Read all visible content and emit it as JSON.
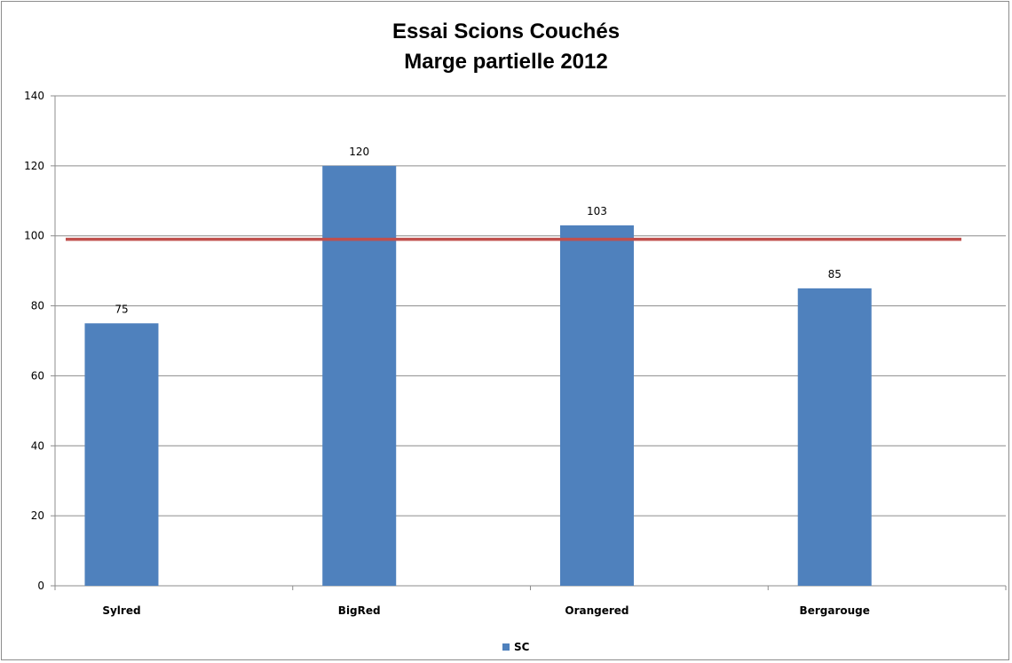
{
  "chart_data": {
    "type": "bar",
    "title": [
      "Essai Scions Couchés",
      "Marge partielle   2012"
    ],
    "xlabel": "",
    "ylabel": "",
    "categories": [
      "Sylred",
      "BigRed",
      "Orangered",
      "Bergarouge"
    ],
    "series": [
      {
        "name": "SC",
        "values": [
          75,
          120,
          103,
          85
        ],
        "data_labels": [
          "75",
          "120",
          "103",
          "85"
        ],
        "color": "#4F81BD"
      }
    ],
    "reference_line": {
      "value": 99,
      "color": "#C0504D"
    },
    "ylim": [
      0,
      140
    ],
    "yticks": [
      0,
      20,
      40,
      60,
      80,
      100,
      120,
      140
    ],
    "grid": true,
    "legend_position": "bottom"
  }
}
